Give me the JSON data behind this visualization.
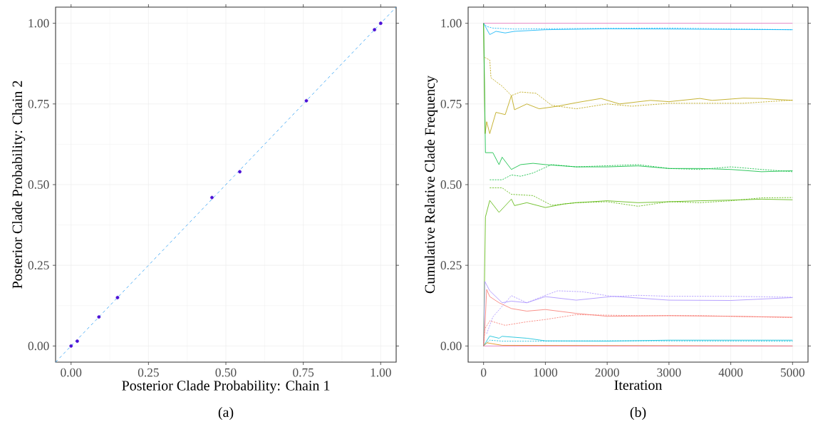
{
  "chart_data": [
    {
      "type": "scatter",
      "xlabel": "Posterior Clade Probability: Chain 1",
      "ylabel": "Posterior Clade Probability: Chain 2",
      "annotations": [
        "(a)"
      ],
      "grid": true,
      "xlim": [
        -0.05,
        1.05
      ],
      "ylim": [
        -0.05,
        1.05
      ],
      "xticks": [
        {
          "value": 0,
          "label": "0.00"
        },
        {
          "value": 0.25,
          "label": "0.25"
        },
        {
          "value": 0.5,
          "label": "0.50"
        },
        {
          "value": 0.75,
          "label": "0.75"
        },
        {
          "value": 1,
          "label": "1.00"
        }
      ],
      "yticks": [
        {
          "value": 0,
          "label": "0.00"
        },
        {
          "value": 0.25,
          "label": "0.25"
        },
        {
          "value": 0.5,
          "label": "0.50"
        },
        {
          "value": 0.75,
          "label": "0.75"
        },
        {
          "value": 1,
          "label": "1.00"
        }
      ],
      "series": [
        {
          "type": "line",
          "color": "#2a9df4",
          "line_style": "dashed",
          "marker": "none",
          "x": [
            -0.05,
            1.05
          ],
          "values": [
            -0.05,
            1.05
          ]
        },
        {
          "type": "scatter",
          "color": "#4b10d6",
          "marker": "circle",
          "x": [
            0,
            0.02,
            0.09,
            0.15,
            0.455,
            0.545,
            0.76,
            0.98,
            1
          ],
          "values": [
            0,
            0.015,
            0.09,
            0.15,
            0.46,
            0.54,
            0.76,
            0.98,
            1
          ]
        }
      ]
    },
    {
      "type": "line",
      "xlabel": "Iteration",
      "ylabel": "Cumulative Relative Clade Frequency",
      "annotations": [
        "(b)"
      ],
      "grid": true,
      "xlim": [
        -250,
        5250
      ],
      "ylim": [
        -0.05,
        1.05
      ],
      "xticks": [
        0,
        1000,
        2000,
        3000,
        4000,
        5000
      ],
      "yticks": [
        {
          "value": 0,
          "label": "0.00"
        },
        {
          "value": 0.25,
          "label": "0.25"
        },
        {
          "value": 0.5,
          "label": "0.50"
        },
        {
          "value": 0.75,
          "label": "0.75"
        },
        {
          "value": 1,
          "label": "1.00"
        }
      ],
      "series": [
        {
          "color": "#00b0f6",
          "line_style": "solid",
          "x": [
            0,
            100,
            200,
            350,
            500,
            1000,
            2000,
            3000,
            5000
          ],
          "values": [
            1,
            0.965,
            0.975,
            0.97,
            0.975,
            0.98,
            0.983,
            0.982,
            0.98
          ]
        },
        {
          "color": "#00b0f6",
          "line_style": "dotted",
          "x": [
            0,
            50,
            150,
            500,
            1000,
            3000,
            5000
          ],
          "values": [
            1,
            0.99,
            0.985,
            0.982,
            0.983,
            0.985,
            0.98
          ]
        },
        {
          "color": "#b79f00",
          "line_style": "solid",
          "x": [
            0,
            25,
            50,
            100,
            200,
            350,
            450,
            500,
            700,
            900,
            1200,
            1500,
            1900,
            2200,
            2700,
            3000,
            3500,
            3700,
            4200,
            4500,
            5000
          ],
          "values": [
            1,
            0.658,
            0.695,
            0.658,
            0.724,
            0.717,
            0.776,
            0.732,
            0.75,
            0.735,
            0.743,
            0.754,
            0.767,
            0.75,
            0.761,
            0.757,
            0.767,
            0.761,
            0.768,
            0.767,
            0.761
          ]
        },
        {
          "color": "#b79f00",
          "line_style": "dotted",
          "x": [
            20,
            100,
            120,
            300,
            450,
            600,
            850,
            1100,
            1500,
            2000,
            2400,
            3000,
            3500,
            4200,
            5000
          ],
          "values": [
            0.894,
            0.886,
            0.831,
            0.805,
            0.776,
            0.787,
            0.783,
            0.746,
            0.735,
            0.75,
            0.743,
            0.752,
            0.752,
            0.752,
            0.762
          ]
        },
        {
          "color": "#00ba38",
          "line_style": "solid",
          "x": [
            0,
            30,
            150,
            250,
            300,
            450,
            600,
            800,
            1000,
            1500,
            2000,
            2500,
            3000,
            3500,
            4000,
            4500,
            5000
          ],
          "values": [
            1,
            0.599,
            0.599,
            0.562,
            0.585,
            0.547,
            0.562,
            0.566,
            0.562,
            0.555,
            0.555,
            0.558,
            0.55,
            0.55,
            0.547,
            0.54,
            0.543
          ]
        },
        {
          "color": "#00ba38",
          "line_style": "dotted",
          "x": [
            100,
            300,
            450,
            600,
            800,
            1100,
            1500,
            2500,
            3000,
            3500,
            4000,
            4500,
            5000
          ],
          "values": [
            0.515,
            0.515,
            0.53,
            0.526,
            0.536,
            0.562,
            0.555,
            0.562,
            0.55,
            0.547,
            0.555,
            0.547,
            0.54
          ]
        },
        {
          "color": "#53b400",
          "line_style": "solid",
          "x": [
            0,
            30,
            100,
            250,
            450,
            500,
            700,
            1000,
            1300,
            1500,
            2000,
            2500,
            3000,
            3500,
            4000,
            4500,
            5000
          ],
          "values": [
            0,
            0.4,
            0.451,
            0.414,
            0.455,
            0.435,
            0.444,
            0.429,
            0.44,
            0.444,
            0.45,
            0.444,
            0.447,
            0.45,
            0.452,
            0.455,
            0.453
          ]
        },
        {
          "color": "#53b400",
          "line_style": "dotted",
          "x": [
            100,
            300,
            450,
            800,
            1100,
            1500,
            2000,
            2500,
            3000,
            3500,
            4000,
            4500,
            5000
          ],
          "values": [
            0.49,
            0.49,
            0.47,
            0.466,
            0.436,
            0.444,
            0.447,
            0.433,
            0.447,
            0.444,
            0.45,
            0.459,
            0.46
          ]
        },
        {
          "color": "#a58aff",
          "line_style": "solid",
          "x": [
            0,
            20,
            100,
            300,
            450,
            700,
            1000,
            1500,
            2100,
            3000,
            4000,
            5000
          ],
          "values": [
            0,
            0.2,
            0.171,
            0.134,
            0.139,
            0.134,
            0.153,
            0.142,
            0.154,
            0.142,
            0.141,
            0.15
          ]
        },
        {
          "color": "#a58aff",
          "line_style": "dotted",
          "x": [
            50,
            150,
            450,
            700,
            1000,
            1200,
            1600,
            2100,
            2500,
            3000,
            4000,
            5000
          ],
          "values": [
            0.038,
            0.09,
            0.156,
            0.134,
            0.157,
            0.171,
            0.168,
            0.153,
            0.157,
            0.154,
            0.154,
            0.151
          ]
        },
        {
          "color": "#f8766d",
          "line_style": "solid",
          "x": [
            0,
            20,
            50,
            100,
            250,
            450,
            700,
            1000,
            1500,
            2000,
            3000,
            4000,
            5000
          ],
          "values": [
            0,
            0.053,
            0.175,
            0.153,
            0.134,
            0.116,
            0.108,
            0.113,
            0.101,
            0.092,
            0.094,
            0.092,
            0.089
          ]
        },
        {
          "color": "#f8766d",
          "line_style": "dotted",
          "x": [
            0,
            20,
            100,
            350,
            700,
            1000,
            1500,
            2500,
            3500,
            5000
          ],
          "values": [
            0,
            0.053,
            0.078,
            0.064,
            0.075,
            0.082,
            0.097,
            0.094,
            0.094,
            0.088
          ]
        },
        {
          "color": "#00bcd8",
          "line_style": "solid",
          "x": [
            0,
            100,
            250,
            300,
            700,
            1000,
            2000,
            3000,
            5000
          ],
          "values": [
            0,
            0.031,
            0.024,
            0.03,
            0.024,
            0.016,
            0.015,
            0.018,
            0.018
          ]
        },
        {
          "color": "#00bcd8",
          "line_style": "dotted",
          "x": [
            0,
            100,
            300,
            1000,
            2000,
            5000
          ],
          "values": [
            0,
            0.018,
            0.015,
            0.015,
            0.016,
            0.015
          ]
        },
        {
          "color": "#e58700",
          "line_style": "solid",
          "x": [
            0,
            50,
            300,
            5000
          ],
          "values": [
            0,
            0.01,
            0.002,
            0
          ]
        },
        {
          "color": "#e36eba",
          "line_style": "solid",
          "x": [
            0,
            5000
          ],
          "values": [
            1,
            1
          ]
        },
        {
          "color": "#e36eba",
          "line_style": "solid",
          "x": [
            0,
            5000
          ],
          "values": [
            0,
            0
          ]
        }
      ]
    }
  ]
}
